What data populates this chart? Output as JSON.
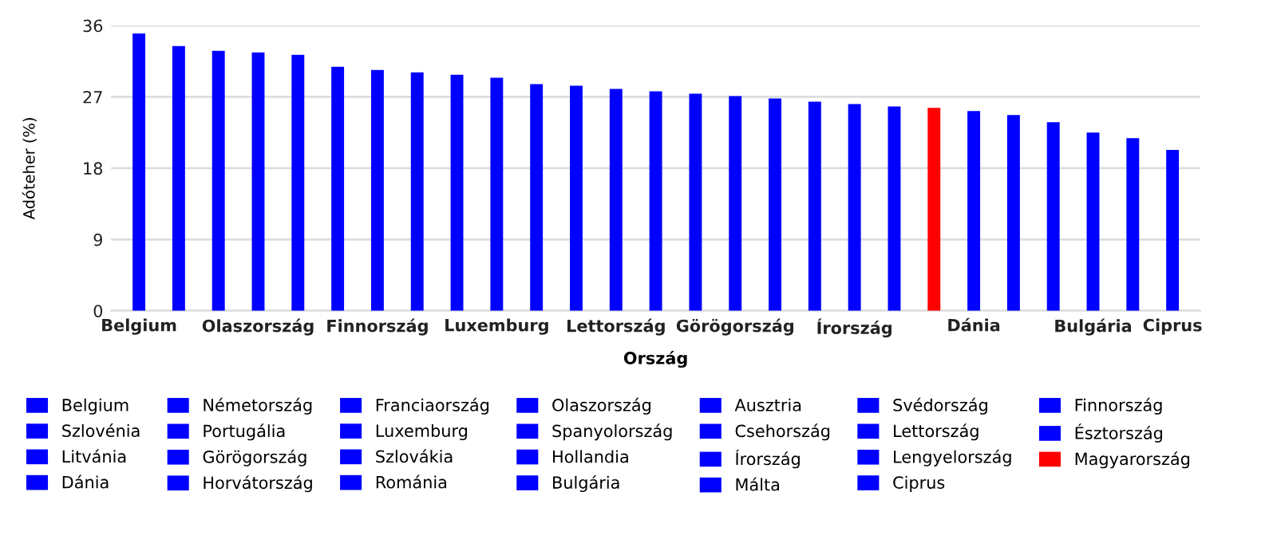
{
  "chart_data": {
    "type": "bar",
    "xlabel": "Ország",
    "ylabel": "Adóteher (%)",
    "categories": [
      "Belgium",
      null,
      null,
      "Olaszország",
      null,
      null,
      "Finnország",
      null,
      null,
      "Luxemburg",
      null,
      null,
      "Lettország",
      null,
      null,
      "Görögország",
      null,
      null,
      "Írország",
      null,
      null,
      "Dánia",
      null,
      null,
      "Bulgária",
      null,
      "Ciprus"
    ],
    "ylim": [
      0,
      36
    ],
    "yticks": [
      0,
      9,
      18,
      27,
      36
    ],
    "grid": "y",
    "legend": "bottom",
    "series": [
      {
        "name": "Belgium",
        "color": "#0000ff",
        "values": [
          35.0,
          null,
          null,
          null,
          null,
          null,
          null,
          null,
          null,
          null,
          null,
          null,
          null,
          null,
          null,
          null,
          null,
          null,
          null,
          null,
          null,
          null,
          null,
          null,
          null,
          null,
          null
        ]
      },
      {
        "name": "Németország",
        "color": "#0000ff",
        "values": [
          null,
          33.4,
          null,
          null,
          null,
          null,
          null,
          null,
          null,
          null,
          null,
          null,
          null,
          null,
          null,
          null,
          null,
          null,
          null,
          null,
          null,
          null,
          null,
          null,
          null,
          null,
          null
        ]
      },
      {
        "name": "Franciaország",
        "color": "#0000ff",
        "values": [
          null,
          null,
          32.8,
          null,
          null,
          null,
          null,
          null,
          null,
          null,
          null,
          null,
          null,
          null,
          null,
          null,
          null,
          null,
          null,
          null,
          null,
          null,
          null,
          null,
          null,
          null,
          null
        ]
      },
      {
        "name": "Olaszország",
        "color": "#0000ff",
        "values": [
          null,
          null,
          null,
          32.6,
          null,
          null,
          null,
          null,
          null,
          null,
          null,
          null,
          null,
          null,
          null,
          null,
          null,
          null,
          null,
          null,
          null,
          null,
          null,
          null,
          null,
          null,
          null
        ]
      },
      {
        "name": "Ausztria",
        "color": "#0000ff",
        "values": [
          null,
          null,
          null,
          null,
          32.3,
          null,
          null,
          null,
          null,
          null,
          null,
          null,
          null,
          null,
          null,
          null,
          null,
          null,
          null,
          null,
          null,
          null,
          null,
          null,
          null,
          null,
          null
        ]
      },
      {
        "name": "Svédország",
        "color": "#0000ff",
        "values": [
          null,
          null,
          null,
          null,
          null,
          30.8,
          null,
          null,
          null,
          null,
          null,
          null,
          null,
          null,
          null,
          null,
          null,
          null,
          null,
          null,
          null,
          null,
          null,
          null,
          null,
          null,
          null
        ]
      },
      {
        "name": "Finnország",
        "color": "#0000ff",
        "values": [
          null,
          null,
          null,
          null,
          null,
          null,
          30.4,
          null,
          null,
          null,
          null,
          null,
          null,
          null,
          null,
          null,
          null,
          null,
          null,
          null,
          null,
          null,
          null,
          null,
          null,
          null,
          null
        ]
      },
      {
        "name": "Szlovénia",
        "color": "#0000ff",
        "values": [
          null,
          null,
          null,
          null,
          null,
          null,
          null,
          30.1,
          null,
          null,
          null,
          null,
          null,
          null,
          null,
          null,
          null,
          null,
          null,
          null,
          null,
          null,
          null,
          null,
          null,
          null,
          null
        ]
      },
      {
        "name": "Portugália",
        "color": "#0000ff",
        "values": [
          null,
          null,
          null,
          null,
          null,
          null,
          null,
          null,
          29.8,
          null,
          null,
          null,
          null,
          null,
          null,
          null,
          null,
          null,
          null,
          null,
          null,
          null,
          null,
          null,
          null,
          null,
          null
        ]
      },
      {
        "name": "Luxemburg",
        "color": "#0000ff",
        "values": [
          null,
          null,
          null,
          null,
          null,
          null,
          null,
          null,
          null,
          29.4,
          null,
          null,
          null,
          null,
          null,
          null,
          null,
          null,
          null,
          null,
          null,
          null,
          null,
          null,
          null,
          null,
          null
        ]
      },
      {
        "name": "Spanyolország",
        "color": "#0000ff",
        "values": [
          null,
          null,
          null,
          null,
          null,
          null,
          null,
          null,
          null,
          null,
          28.6,
          null,
          null,
          null,
          null,
          null,
          null,
          null,
          null,
          null,
          null,
          null,
          null,
          null,
          null,
          null,
          null
        ]
      },
      {
        "name": "Csehország",
        "color": "#0000ff",
        "values": [
          null,
          null,
          null,
          null,
          null,
          null,
          null,
          null,
          null,
          null,
          null,
          28.4,
          null,
          null,
          null,
          null,
          null,
          null,
          null,
          null,
          null,
          null,
          null,
          null,
          null,
          null,
          null
        ]
      },
      {
        "name": "Lettország",
        "color": "#0000ff",
        "values": [
          null,
          null,
          null,
          null,
          null,
          null,
          null,
          null,
          null,
          null,
          null,
          null,
          28.0,
          null,
          null,
          null,
          null,
          null,
          null,
          null,
          null,
          null,
          null,
          null,
          null,
          null,
          null
        ]
      },
      {
        "name": "Észtország",
        "color": "#0000ff",
        "values": [
          null,
          null,
          null,
          null,
          null,
          null,
          null,
          null,
          null,
          null,
          null,
          null,
          null,
          27.7,
          null,
          null,
          null,
          null,
          null,
          null,
          null,
          null,
          null,
          null,
          null,
          null,
          null
        ]
      },
      {
        "name": "Litvánia",
        "color": "#0000ff",
        "values": [
          null,
          null,
          null,
          null,
          null,
          null,
          null,
          null,
          null,
          null,
          null,
          null,
          null,
          null,
          27.4,
          null,
          null,
          null,
          null,
          null,
          null,
          null,
          null,
          null,
          null,
          null,
          null
        ]
      },
      {
        "name": "Görögország",
        "color": "#0000ff",
        "values": [
          null,
          null,
          null,
          null,
          null,
          null,
          null,
          null,
          null,
          null,
          null,
          null,
          null,
          null,
          null,
          27.1,
          null,
          null,
          null,
          null,
          null,
          null,
          null,
          null,
          null,
          null,
          null
        ]
      },
      {
        "name": "Szlovákia",
        "color": "#0000ff",
        "values": [
          null,
          null,
          null,
          null,
          null,
          null,
          null,
          null,
          null,
          null,
          null,
          null,
          null,
          null,
          null,
          null,
          26.8,
          null,
          null,
          null,
          null,
          null,
          null,
          null,
          null,
          null,
          null
        ]
      },
      {
        "name": "Hollandia",
        "color": "#0000ff",
        "values": [
          null,
          null,
          null,
          null,
          null,
          null,
          null,
          null,
          null,
          null,
          null,
          null,
          null,
          null,
          null,
          null,
          null,
          26.4,
          null,
          null,
          null,
          null,
          null,
          null,
          null,
          null,
          null
        ]
      },
      {
        "name": "Írország",
        "color": "#0000ff",
        "values": [
          null,
          null,
          null,
          null,
          null,
          null,
          null,
          null,
          null,
          null,
          null,
          null,
          null,
          null,
          null,
          null,
          null,
          null,
          26.1,
          null,
          null,
          null,
          null,
          null,
          null,
          null,
          null
        ]
      },
      {
        "name": "Lengyelország",
        "color": "#0000ff",
        "values": [
          null,
          null,
          null,
          null,
          null,
          null,
          null,
          null,
          null,
          null,
          null,
          null,
          null,
          null,
          null,
          null,
          null,
          null,
          null,
          25.8,
          null,
          null,
          null,
          null,
          null,
          null,
          null
        ]
      },
      {
        "name": "Magyarország",
        "color": "#ff0000",
        "values": [
          null,
          null,
          null,
          null,
          null,
          null,
          null,
          null,
          null,
          null,
          null,
          null,
          null,
          null,
          null,
          null,
          null,
          null,
          null,
          null,
          25.6,
          null,
          null,
          null,
          null,
          null,
          null
        ]
      },
      {
        "name": "Dánia",
        "color": "#0000ff",
        "values": [
          null,
          null,
          null,
          null,
          null,
          null,
          null,
          null,
          null,
          null,
          null,
          null,
          null,
          null,
          null,
          null,
          null,
          null,
          null,
          null,
          null,
          25.2,
          null,
          null,
          null,
          null,
          null
        ]
      },
      {
        "name": "Horvátország",
        "color": "#0000ff",
        "values": [
          null,
          null,
          null,
          null,
          null,
          null,
          null,
          null,
          null,
          null,
          null,
          null,
          null,
          null,
          null,
          null,
          null,
          null,
          null,
          null,
          null,
          null,
          24.7,
          null,
          null,
          null,
          null
        ]
      },
      {
        "name": "Románia",
        "color": "#0000ff",
        "values": [
          null,
          null,
          null,
          null,
          null,
          null,
          null,
          null,
          null,
          null,
          null,
          null,
          null,
          null,
          null,
          null,
          null,
          null,
          null,
          null,
          null,
          null,
          null,
          23.8,
          null,
          null,
          null
        ]
      },
      {
        "name": "Bulgária",
        "color": "#0000ff",
        "values": [
          null,
          null,
          null,
          null,
          null,
          null,
          null,
          null,
          null,
          null,
          null,
          null,
          null,
          null,
          null,
          null,
          null,
          null,
          null,
          null,
          null,
          null,
          null,
          null,
          22.5,
          null,
          null
        ]
      },
      {
        "name": "Málta",
        "color": "#0000ff",
        "values": [
          null,
          null,
          null,
          null,
          null,
          null,
          null,
          null,
          null,
          null,
          null,
          null,
          null,
          null,
          null,
          null,
          null,
          null,
          null,
          null,
          null,
          null,
          null,
          null,
          null,
          21.8,
          null
        ]
      },
      {
        "name": "Ciprus",
        "color": "#0000ff",
        "values": [
          null,
          null,
          null,
          null,
          null,
          null,
          null,
          null,
          null,
          null,
          null,
          null,
          null,
          null,
          null,
          null,
          null,
          null,
          null,
          null,
          null,
          null,
          null,
          null,
          null,
          null,
          20.3
        ]
      }
    ]
  }
}
